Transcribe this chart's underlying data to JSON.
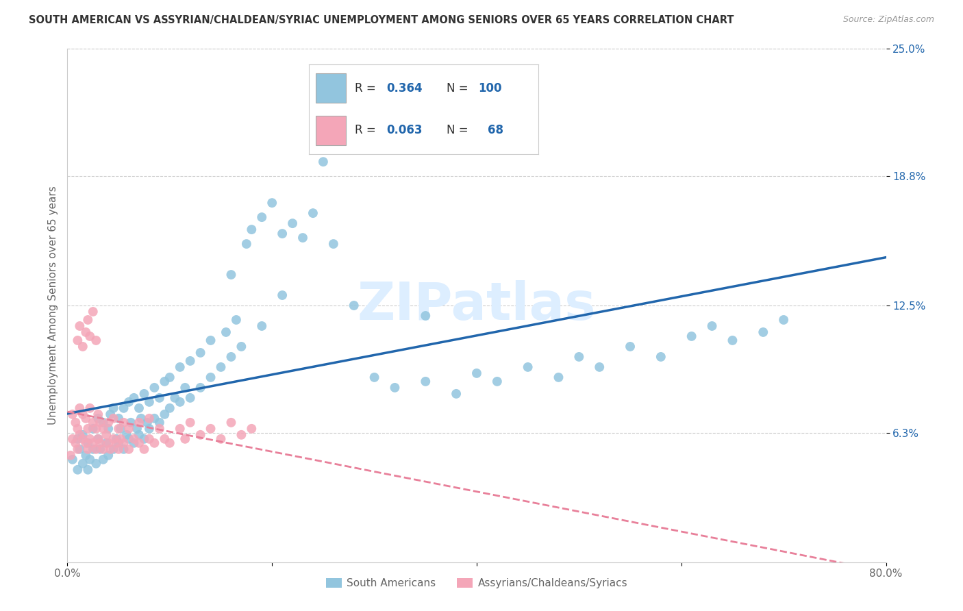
{
  "title": "SOUTH AMERICAN VS ASSYRIAN/CHALDEAN/SYRIAC UNEMPLOYMENT AMONG SENIORS OVER 65 YEARS CORRELATION CHART",
  "source": "Source: ZipAtlas.com",
  "ylabel": "Unemployment Among Seniors over 65 years",
  "xlim": [
    0,
    0.8
  ],
  "ylim": [
    0,
    0.25
  ],
  "xtick_positions": [
    0.0,
    0.2,
    0.4,
    0.6,
    0.8
  ],
  "xtick_labels": [
    "0.0%",
    "",
    "",
    "",
    "80.0%"
  ],
  "ytick_positions": [
    0.063,
    0.125,
    0.188,
    0.25
  ],
  "ytick_labels": [
    "6.3%",
    "12.5%",
    "18.8%",
    "25.0%"
  ],
  "blue_scatter_color": "#92C5DE",
  "pink_scatter_color": "#F4A6B8",
  "blue_line_color": "#2166AC",
  "pink_line_color": "#E8809A",
  "label_color": "#2166AC",
  "grid_color": "#CCCCCC",
  "spine_color": "#CCCCCC",
  "title_color": "#333333",
  "source_color": "#999999",
  "ylabel_color": "#666666",
  "xtick_color": "#666666",
  "watermark_color": "#DDEEFF",
  "R_blue": 0.364,
  "N_blue": 100,
  "R_pink": 0.063,
  "N_pink": 68,
  "legend_label_blue": "South Americans",
  "legend_label_pink": "Assyrians/Chaldeans/Syriacs",
  "watermark": "ZIPatlas",
  "blue_scatter_x": [
    0.005,
    0.01,
    0.01,
    0.012,
    0.015,
    0.015,
    0.018,
    0.02,
    0.02,
    0.022,
    0.025,
    0.025,
    0.028,
    0.03,
    0.03,
    0.032,
    0.035,
    0.035,
    0.038,
    0.04,
    0.04,
    0.042,
    0.045,
    0.045,
    0.048,
    0.05,
    0.05,
    0.052,
    0.055,
    0.055,
    0.058,
    0.06,
    0.06,
    0.062,
    0.065,
    0.065,
    0.068,
    0.07,
    0.07,
    0.072,
    0.075,
    0.075,
    0.078,
    0.08,
    0.08,
    0.085,
    0.085,
    0.09,
    0.09,
    0.095,
    0.095,
    0.1,
    0.1,
    0.105,
    0.11,
    0.11,
    0.115,
    0.12,
    0.12,
    0.13,
    0.13,
    0.14,
    0.14,
    0.15,
    0.155,
    0.16,
    0.165,
    0.17,
    0.175,
    0.18,
    0.19,
    0.2,
    0.21,
    0.22,
    0.23,
    0.24,
    0.25,
    0.26,
    0.3,
    0.32,
    0.35,
    0.38,
    0.4,
    0.42,
    0.45,
    0.48,
    0.5,
    0.52,
    0.55,
    0.58,
    0.61,
    0.63,
    0.65,
    0.68,
    0.7,
    0.35,
    0.28,
    0.19,
    0.16,
    0.21
  ],
  "blue_scatter_y": [
    0.05,
    0.045,
    0.06,
    0.055,
    0.048,
    0.062,
    0.052,
    0.045,
    0.058,
    0.05,
    0.055,
    0.065,
    0.048,
    0.06,
    0.07,
    0.055,
    0.05,
    0.068,
    0.058,
    0.052,
    0.065,
    0.072,
    0.055,
    0.075,
    0.06,
    0.058,
    0.07,
    0.065,
    0.055,
    0.075,
    0.062,
    0.06,
    0.078,
    0.068,
    0.058,
    0.08,
    0.065,
    0.062,
    0.075,
    0.07,
    0.06,
    0.082,
    0.068,
    0.065,
    0.078,
    0.07,
    0.085,
    0.068,
    0.08,
    0.072,
    0.088,
    0.075,
    0.09,
    0.08,
    0.078,
    0.095,
    0.085,
    0.08,
    0.098,
    0.085,
    0.102,
    0.09,
    0.108,
    0.095,
    0.112,
    0.1,
    0.118,
    0.105,
    0.155,
    0.162,
    0.168,
    0.175,
    0.16,
    0.165,
    0.158,
    0.17,
    0.195,
    0.155,
    0.09,
    0.085,
    0.088,
    0.082,
    0.092,
    0.088,
    0.095,
    0.09,
    0.1,
    0.095,
    0.105,
    0.1,
    0.11,
    0.115,
    0.108,
    0.112,
    0.118,
    0.12,
    0.125,
    0.115,
    0.14,
    0.13
  ],
  "pink_scatter_x": [
    0.003,
    0.005,
    0.005,
    0.008,
    0.008,
    0.01,
    0.01,
    0.012,
    0.012,
    0.015,
    0.015,
    0.018,
    0.018,
    0.02,
    0.02,
    0.022,
    0.022,
    0.025,
    0.025,
    0.028,
    0.028,
    0.03,
    0.03,
    0.032,
    0.032,
    0.035,
    0.035,
    0.038,
    0.04,
    0.04,
    0.042,
    0.045,
    0.045,
    0.048,
    0.05,
    0.05,
    0.052,
    0.055,
    0.055,
    0.06,
    0.06,
    0.065,
    0.07,
    0.07,
    0.075,
    0.08,
    0.08,
    0.085,
    0.09,
    0.095,
    0.1,
    0.11,
    0.115,
    0.12,
    0.13,
    0.14,
    0.15,
    0.16,
    0.17,
    0.18,
    0.01,
    0.012,
    0.015,
    0.018,
    0.02,
    0.022,
    0.025,
    0.028
  ],
  "pink_scatter_y": [
    0.052,
    0.06,
    0.072,
    0.058,
    0.068,
    0.055,
    0.065,
    0.062,
    0.075,
    0.06,
    0.072,
    0.058,
    0.07,
    0.055,
    0.065,
    0.06,
    0.075,
    0.058,
    0.068,
    0.055,
    0.065,
    0.06,
    0.072,
    0.058,
    0.068,
    0.055,
    0.065,
    0.062,
    0.058,
    0.068,
    0.055,
    0.06,
    0.07,
    0.058,
    0.055,
    0.065,
    0.06,
    0.058,
    0.068,
    0.055,
    0.065,
    0.06,
    0.058,
    0.068,
    0.055,
    0.06,
    0.07,
    0.058,
    0.065,
    0.06,
    0.058,
    0.065,
    0.06,
    0.068,
    0.062,
    0.065,
    0.06,
    0.068,
    0.062,
    0.065,
    0.108,
    0.115,
    0.105,
    0.112,
    0.118,
    0.11,
    0.122,
    0.108
  ]
}
